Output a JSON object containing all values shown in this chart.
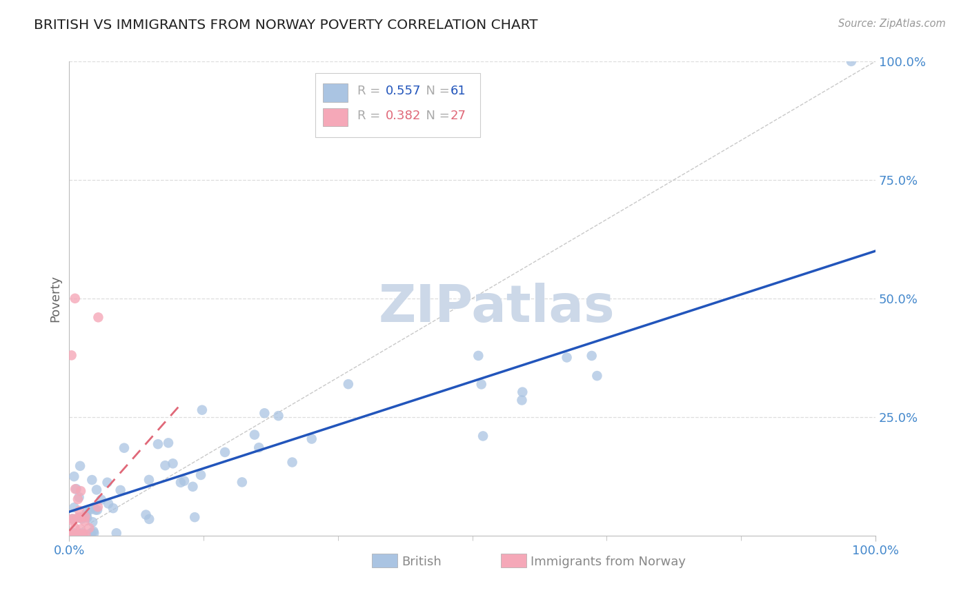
{
  "title": "BRITISH VS IMMIGRANTS FROM NORWAY POVERTY CORRELATION CHART",
  "source_text": "Source: ZipAtlas.com",
  "ylabel": "Poverty",
  "r_british": 0.557,
  "n_british": 61,
  "r_norway": 0.382,
  "n_norway": 27,
  "british_color": "#aac4e2",
  "norway_color": "#f5a8b8",
  "british_line_color": "#2255bb",
  "norway_line_color": "#e06878",
  "ref_line_color": "#bbbbbb",
  "title_color": "#222222",
  "axis_label_color": "#666666",
  "tick_color": "#4488cc",
  "watermark_color": "#ccd8e8",
  "legend_border_color": "#cccccc",
  "grid_color": "#dddddd",
  "background_color": "#ffffff",
  "brit_line_x0": 0,
  "brit_line_y0": 5.0,
  "brit_line_x1": 100,
  "brit_line_y1": 60.0,
  "norw_line_x0": 0,
  "norw_line_y0": 1.0,
  "norw_line_x1": 14,
  "norw_line_y1": 28.0,
  "xlim": [
    0,
    100
  ],
  "ylim": [
    0,
    100
  ],
  "marker_size": 110
}
